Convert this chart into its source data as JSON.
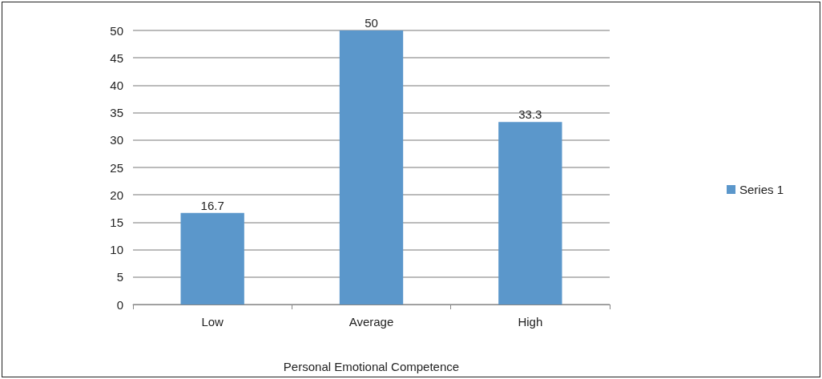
{
  "chart_data": {
    "type": "bar",
    "xlabel": "Personal Emotional Competence",
    "categories": [
      "Low",
      "Average",
      "High"
    ],
    "series": [
      {
        "name": "Series 1",
        "color": "#5b97cb",
        "values": [
          16.7,
          50,
          33.3
        ]
      }
    ],
    "ylim": [
      0,
      50
    ],
    "yticks": [
      0,
      5,
      10,
      15,
      20,
      25,
      30,
      35,
      40,
      45,
      50
    ],
    "grid": "y",
    "legend": "right",
    "data_labels": true
  }
}
